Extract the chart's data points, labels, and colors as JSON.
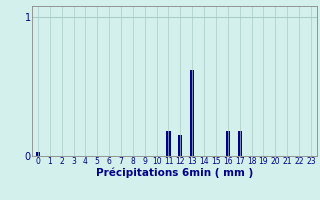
{
  "hours": [
    0,
    1,
    2,
    3,
    4,
    5,
    6,
    7,
    8,
    9,
    10,
    11,
    12,
    13,
    14,
    15,
    16,
    17,
    18,
    19,
    20,
    21,
    22,
    23
  ],
  "values": [
    0.03,
    0.0,
    0.0,
    0.0,
    0.0,
    0.0,
    0.0,
    0.0,
    0.0,
    0.0,
    0.0,
    0.18,
    0.15,
    0.62,
    0.0,
    0.0,
    0.18,
    0.18,
    0.0,
    0.0,
    0.0,
    0.0,
    0.0,
    0.0
  ],
  "bar_color": "#00008b",
  "bg_color": "#d4f0ec",
  "grid_color": "#aaccc8",
  "axis_color": "#888888",
  "xlabel": "Précipitations 6min ( mm )",
  "xlabel_color": "#00008b",
  "ylim": [
    0,
    1.08
  ],
  "xlim": [
    -0.5,
    23.5
  ],
  "tick_color": "#00008b",
  "bar_width": 0.35,
  "xlabel_fontsize": 7.5,
  "xtick_fontsize": 5.5,
  "ytick_fontsize": 7
}
